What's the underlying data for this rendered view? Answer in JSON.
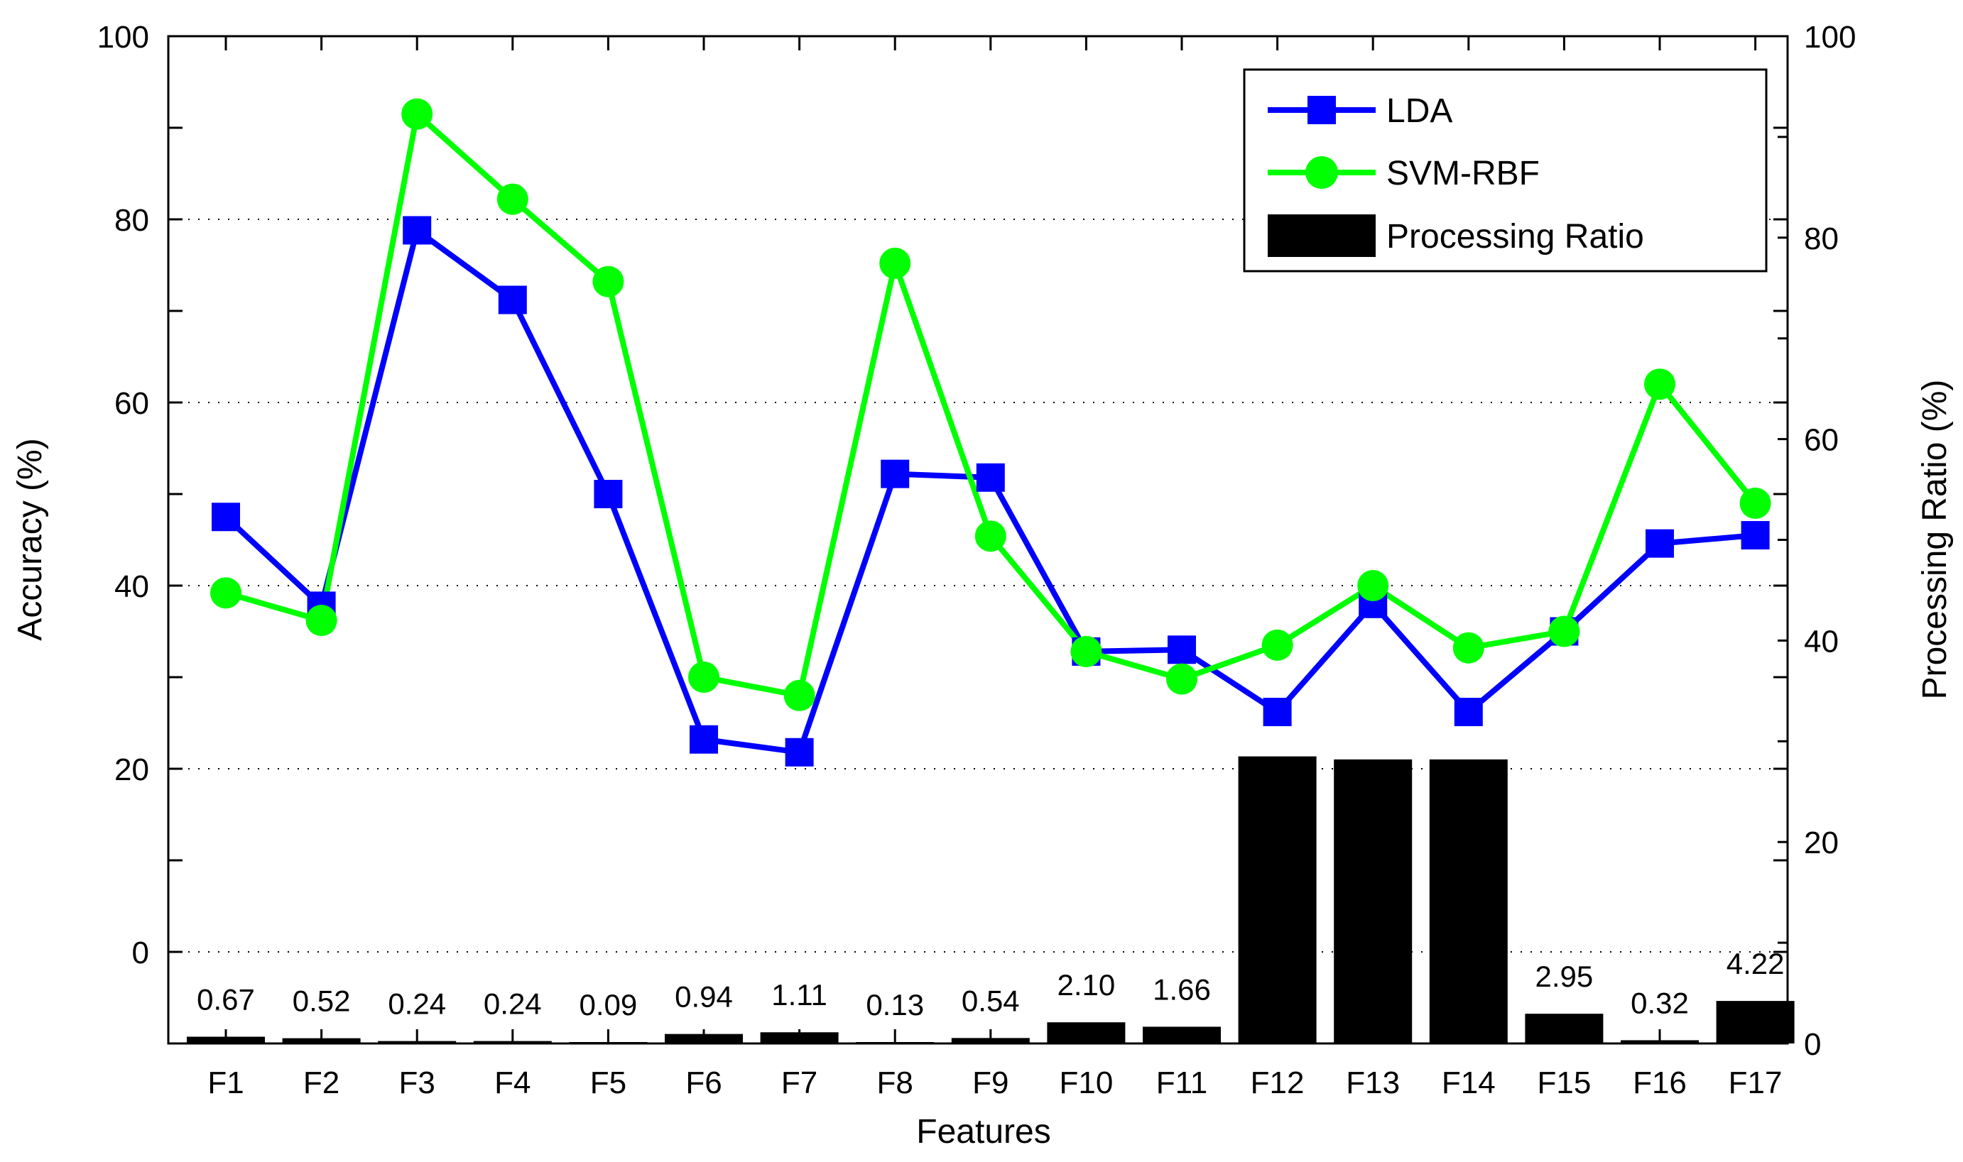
{
  "chart_data": {
    "type": "line+bar",
    "categories": [
      "F1",
      "F2",
      "F3",
      "F4",
      "F5",
      "F6",
      "F7",
      "F8",
      "F9",
      "F10",
      "F11",
      "F12",
      "F13",
      "F14",
      "F15",
      "F16",
      "F17"
    ],
    "xlabel": "Features",
    "ylabel_left": "Accuracy (%)",
    "ylabel_right": "Processing Ratio (%)",
    "ylim_left": [
      -10,
      100
    ],
    "ylim_right": [
      0,
      100
    ],
    "yticks_left": [
      0,
      20,
      40,
      60,
      80,
      100
    ],
    "yticks_right": [
      0,
      20,
      40,
      60,
      80,
      100
    ],
    "grid": "horizontal-dotted",
    "legend_position": "top-right",
    "series": [
      {
        "name": "LDA",
        "type": "line",
        "axis": "left",
        "color": "#0000ff",
        "marker": "square",
        "values": [
          47.5,
          37.8,
          78.8,
          71.2,
          50.0,
          23.2,
          21.8,
          52.2,
          51.8,
          32.8,
          33.0,
          26.2,
          38.0,
          26.2,
          35.0,
          44.6,
          45.5
        ]
      },
      {
        "name": "SVM-RBF",
        "type": "line",
        "axis": "left",
        "color": "#00ff00",
        "marker": "circle",
        "values": [
          39.2,
          36.2,
          91.5,
          82.2,
          73.2,
          30.0,
          28.0,
          75.2,
          45.4,
          32.8,
          29.8,
          33.5,
          40.0,
          33.2,
          35.0,
          62.0,
          49.0
        ]
      },
      {
        "name": "Processing Ratio",
        "type": "bar",
        "axis": "right",
        "color": "#000000",
        "values": [
          0.67,
          0.52,
          0.24,
          0.24,
          0.09,
          0.94,
          1.11,
          0.13,
          0.54,
          2.1,
          1.66,
          28.5,
          28.2,
          28.2,
          2.95,
          0.32,
          4.22
        ],
        "labels": [
          "0.67",
          "0.52",
          "0.24",
          "0.24",
          "0.09",
          "0.94",
          "1.11",
          "0.13",
          "0.54",
          "2.10",
          "1.66",
          "",
          "",
          "",
          "2.95",
          "0.32",
          "4.22"
        ]
      }
    ]
  }
}
